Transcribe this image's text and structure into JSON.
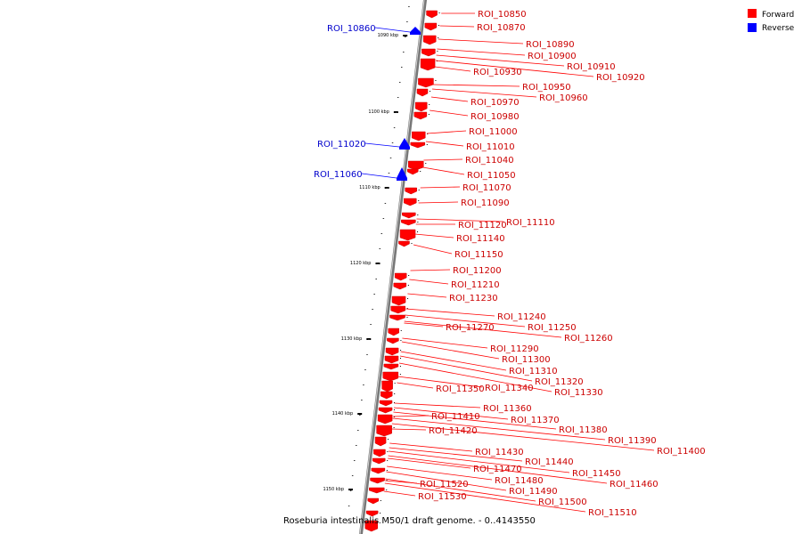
{
  "caption": "Roseburia intestinalis M50/1 draft genome. - 0..4143550",
  "legend": [
    {
      "label": "Forward",
      "color": "#ff0000"
    },
    {
      "label": "Reverse",
      "color": "#0000ff"
    }
  ],
  "axis_ticks": [
    "1090 kbp",
    "1100 kbp",
    "1110 kbp",
    "1120 kbp",
    "1130 kbp",
    "1140 kbp",
    "1150 kbp"
  ],
  "forward_labels": [
    "ROI_10850",
    "ROI_10870",
    "ROI_10890",
    "ROI_10900",
    "ROI_10910",
    "ROI_10920",
    "ROI_10930",
    "ROI_10950",
    "ROI_10960",
    "ROI_10970",
    "ROI_10980",
    "ROI_11000",
    "ROI_11010",
    "ROI_11040",
    "ROI_11050",
    "ROI_11070",
    "ROI_11090",
    "ROI_11110",
    "ROI_11120",
    "ROI_11140",
    "ROI_11150",
    "ROI_11200",
    "ROI_11210",
    "ROI_11230",
    "ROI_11240",
    "ROI_11250",
    "ROI_11260",
    "ROI_11270",
    "ROI_11290",
    "ROI_11300",
    "ROI_11310",
    "ROI_11320",
    "ROI_11330",
    "ROI_11340",
    "ROI_11350",
    "ROI_11360",
    "ROI_11370",
    "ROI_11380",
    "ROI_11390",
    "ROI_11400",
    "ROI_11410",
    "ROI_11420",
    "ROI_11430",
    "ROI_11440",
    "ROI_11450",
    "ROI_11460",
    "ROI_11470",
    "ROI_11480",
    "ROI_11490",
    "ROI_11500",
    "ROI_11510",
    "ROI_11520",
    "ROI_11530"
  ],
  "reverse_labels": [
    "ROI_10860",
    "ROI_11020",
    "ROI_11060"
  ]
}
